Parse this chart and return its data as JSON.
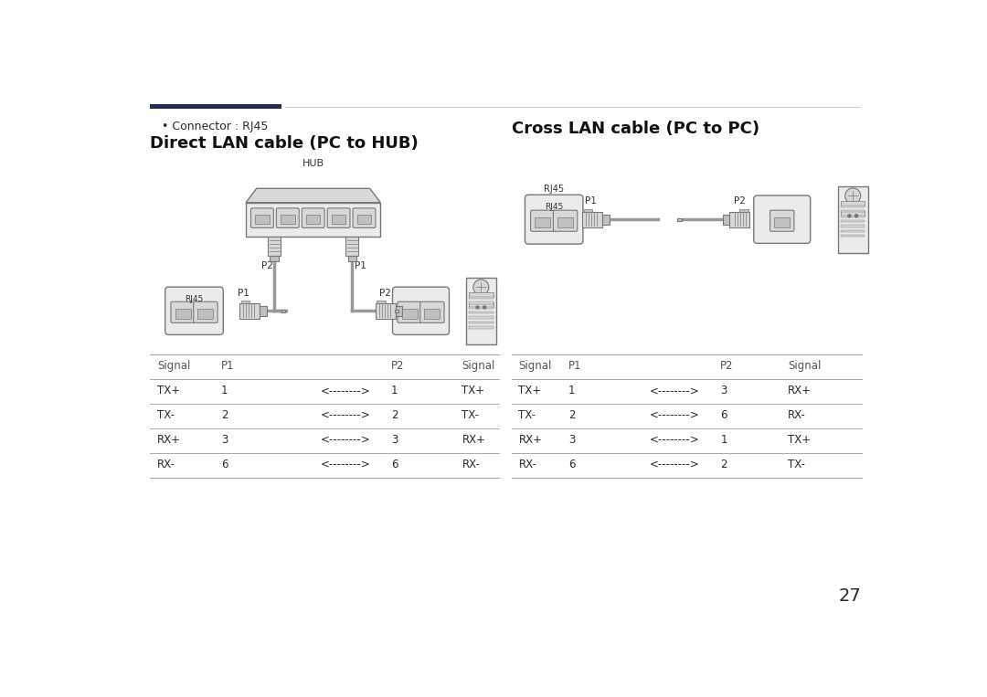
{
  "bg_color": "#ffffff",
  "page_number": "27",
  "header_bar_dark": "#1f2d4e",
  "header_bar_light": "#c8c8c8",
  "connector_label": "• Connector : RJ45",
  "section1_title": "Direct LAN cable (PC to HUB)",
  "section2_title": "Cross LAN cable (PC to PC)",
  "table1_rows": [
    [
      "Signal",
      "P1",
      "",
      "P2",
      "Signal"
    ],
    [
      "TX+",
      "1",
      "<-------->",
      "1",
      "TX+"
    ],
    [
      "TX-",
      "2",
      "<-------->",
      "2",
      "TX-"
    ],
    [
      "RX+",
      "3",
      "<-------->",
      "3",
      "RX+"
    ],
    [
      "RX-",
      "6",
      "<-------->",
      "6",
      "RX-"
    ]
  ],
  "table2_rows": [
    [
      "Signal",
      "P1",
      "",
      "P2",
      "Signal"
    ],
    [
      "TX+",
      "1",
      "<-------->",
      "3",
      "RX+"
    ],
    [
      "TX-",
      "2",
      "<-------->",
      "6",
      "RX-"
    ],
    [
      "RX+",
      "3",
      "<-------->",
      "1",
      "TX+"
    ],
    [
      "RX-",
      "6",
      "<-------->",
      "2",
      "TX-"
    ]
  ],
  "text_color": "#2a2a2a",
  "header_color": "#555555",
  "line_color": "#aaaaaa",
  "diagram_edge": "#777777",
  "diagram_face_light": "#ebebeb",
  "diagram_face_mid": "#d8d8d8",
  "diagram_face_dark": "#c0c0c0",
  "connector_face": "#b8b8b8",
  "cable_color": "#999999"
}
